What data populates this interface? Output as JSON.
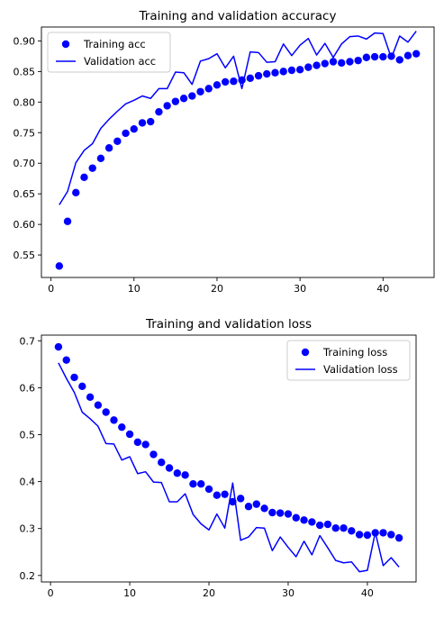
{
  "chart_data": [
    {
      "type": "line",
      "title": "Training and validation accuracy",
      "xlabel": "",
      "ylabel": "",
      "xlim": [
        -1.15,
        46.15
      ],
      "ylim": [
        0.5133,
        0.9227
      ],
      "xticks": [
        0,
        10,
        20,
        30,
        40
      ],
      "yticks": [
        0.55,
        0.6,
        0.65,
        0.7,
        0.75,
        0.8,
        0.85,
        0.9
      ],
      "grid": false,
      "legend_position": "upper-left",
      "series": [
        {
          "name": "Training acc",
          "style": "markers",
          "color": "#0000ff",
          "x": [
            1,
            2,
            3,
            4,
            5,
            6,
            7,
            8,
            9,
            10,
            11,
            12,
            13,
            14,
            15,
            16,
            17,
            18,
            19,
            20,
            21,
            22,
            23,
            24,
            25,
            26,
            27,
            28,
            29,
            30,
            31,
            32,
            33,
            34,
            35,
            36,
            37,
            38,
            39,
            40,
            41,
            42,
            43,
            44
          ],
          "y": [
            0.532,
            0.605,
            0.652,
            0.677,
            0.692,
            0.708,
            0.725,
            0.736,
            0.749,
            0.756,
            0.766,
            0.768,
            0.784,
            0.794,
            0.801,
            0.806,
            0.81,
            0.817,
            0.822,
            0.828,
            0.833,
            0.834,
            0.836,
            0.839,
            0.843,
            0.846,
            0.848,
            0.85,
            0.852,
            0.853,
            0.857,
            0.86,
            0.863,
            0.866,
            0.864,
            0.866,
            0.868,
            0.873,
            0.874,
            0.874,
            0.875,
            0.869,
            0.876,
            0.879
          ]
        },
        {
          "name": "Validation acc",
          "style": "line",
          "color": "#0000ff",
          "x": [
            1,
            2,
            3,
            4,
            5,
            6,
            7,
            8,
            9,
            10,
            11,
            12,
            13,
            14,
            15,
            16,
            17,
            18,
            19,
            20,
            21,
            22,
            23,
            24,
            25,
            26,
            27,
            28,
            29,
            30,
            31,
            32,
            33,
            34,
            35,
            36,
            37,
            38,
            39,
            40,
            41,
            42,
            43,
            44
          ],
          "y": [
            0.632,
            0.654,
            0.701,
            0.721,
            0.732,
            0.757,
            0.772,
            0.785,
            0.797,
            0.803,
            0.81,
            0.806,
            0.822,
            0.822,
            0.849,
            0.848,
            0.829,
            0.867,
            0.871,
            0.879,
            0.856,
            0.875,
            0.822,
            0.882,
            0.881,
            0.865,
            0.866,
            0.895,
            0.876,
            0.893,
            0.904,
            0.877,
            0.896,
            0.873,
            0.895,
            0.907,
            0.908,
            0.903,
            0.913,
            0.912,
            0.872,
            0.908,
            0.898,
            0.916
          ]
        }
      ]
    },
    {
      "type": "line",
      "title": "Training and validation loss",
      "xlabel": "",
      "ylabel": "",
      "xlim": [
        -1.15,
        46.15
      ],
      "ylim": [
        0.1862,
        0.7121
      ],
      "xticks": [
        0,
        10,
        20,
        30,
        40
      ],
      "yticks": [
        0.2,
        0.3,
        0.4,
        0.5,
        0.6,
        0.7
      ],
      "grid": false,
      "legend_position": "upper-right",
      "series": [
        {
          "name": "Training loss",
          "style": "markers",
          "color": "#0000ff",
          "x": [
            1,
            2,
            3,
            4,
            5,
            6,
            7,
            8,
            9,
            10,
            11,
            12,
            13,
            14,
            15,
            16,
            17,
            18,
            19,
            20,
            21,
            22,
            23,
            24,
            25,
            26,
            27,
            28,
            29,
            30,
            31,
            32,
            33,
            34,
            35,
            36,
            37,
            38,
            39,
            40,
            41,
            42,
            43,
            44
          ],
          "y": [
            0.687,
            0.659,
            0.622,
            0.603,
            0.58,
            0.563,
            0.548,
            0.531,
            0.516,
            0.501,
            0.484,
            0.479,
            0.458,
            0.441,
            0.429,
            0.418,
            0.414,
            0.395,
            0.395,
            0.384,
            0.371,
            0.373,
            0.357,
            0.364,
            0.347,
            0.352,
            0.343,
            0.334,
            0.333,
            0.331,
            0.323,
            0.318,
            0.314,
            0.307,
            0.309,
            0.301,
            0.301,
            0.295,
            0.287,
            0.286,
            0.291,
            0.291,
            0.287,
            0.28
          ]
        },
        {
          "name": "Validation loss",
          "style": "line",
          "color": "#0000ff",
          "x": [
            1,
            2,
            3,
            4,
            5,
            6,
            7,
            8,
            9,
            10,
            11,
            12,
            13,
            14,
            15,
            16,
            17,
            18,
            19,
            20,
            21,
            22,
            23,
            24,
            25,
            26,
            27,
            28,
            29,
            30,
            31,
            32,
            33,
            34,
            35,
            36,
            37,
            38,
            39,
            40,
            41,
            42,
            43,
            44
          ],
          "y": [
            0.653,
            0.62,
            0.59,
            0.548,
            0.534,
            0.518,
            0.481,
            0.48,
            0.446,
            0.453,
            0.417,
            0.421,
            0.399,
            0.398,
            0.357,
            0.357,
            0.374,
            0.33,
            0.31,
            0.297,
            0.331,
            0.301,
            0.397,
            0.275,
            0.282,
            0.302,
            0.301,
            0.253,
            0.282,
            0.26,
            0.24,
            0.273,
            0.244,
            0.285,
            0.259,
            0.232,
            0.227,
            0.229,
            0.208,
            0.211,
            0.292,
            0.221,
            0.238,
            0.218
          ]
        }
      ]
    }
  ]
}
